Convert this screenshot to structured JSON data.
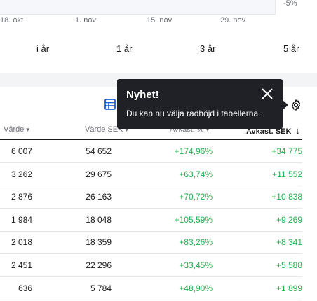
{
  "chart": {
    "y_label": "-5%",
    "x_ticks": [
      "18. okt",
      "1. nov",
      "15. nov",
      "29. nov"
    ]
  },
  "periods": [
    "i år",
    "1 år",
    "3 år",
    "5 år"
  ],
  "table": {
    "headers": {
      "col1": "Värde",
      "col2": "Värde SEK",
      "col3": "Avkast. %",
      "col4": "Avkast. SEK"
    },
    "rows": [
      {
        "c1": "6 007",
        "c2": "54 652",
        "c3": "+174,96%",
        "c4": "+34 775"
      },
      {
        "c1": "3 262",
        "c2": "29 675",
        "c3": "+63,74%",
        "c4": "+11 552"
      },
      {
        "c1": "2 876",
        "c2": "26 163",
        "c3": "+70,72%",
        "c4": "+10 838"
      },
      {
        "c1": "1 984",
        "c2": "18 048",
        "c3": "+105,59%",
        "c4": "+9 269"
      },
      {
        "c1": "2 018",
        "c2": "18 359",
        "c3": "+83,26%",
        "c4": "+8 341"
      },
      {
        "c1": "2 451",
        "c2": "22 296",
        "c3": "+33,45%",
        "c4": "+5 588"
      },
      {
        "c1": "636",
        "c2": "5 784",
        "c3": "+48,90%",
        "c4": "+1 899"
      }
    ]
  },
  "tooltip": {
    "title": "Nyhet!",
    "body": "Du kan nu välja radhöjd i tabellerna."
  },
  "colors": {
    "positive": "#22b14c",
    "accent": "#1a5fd6",
    "tooltip_bg": "#1f2126"
  },
  "icons": {
    "table_settings": "table-layout-icon",
    "settings": "gear-icon",
    "close": "close-icon",
    "sort_desc": "arrow-down-icon",
    "chevron": "chevron-down-icon"
  }
}
